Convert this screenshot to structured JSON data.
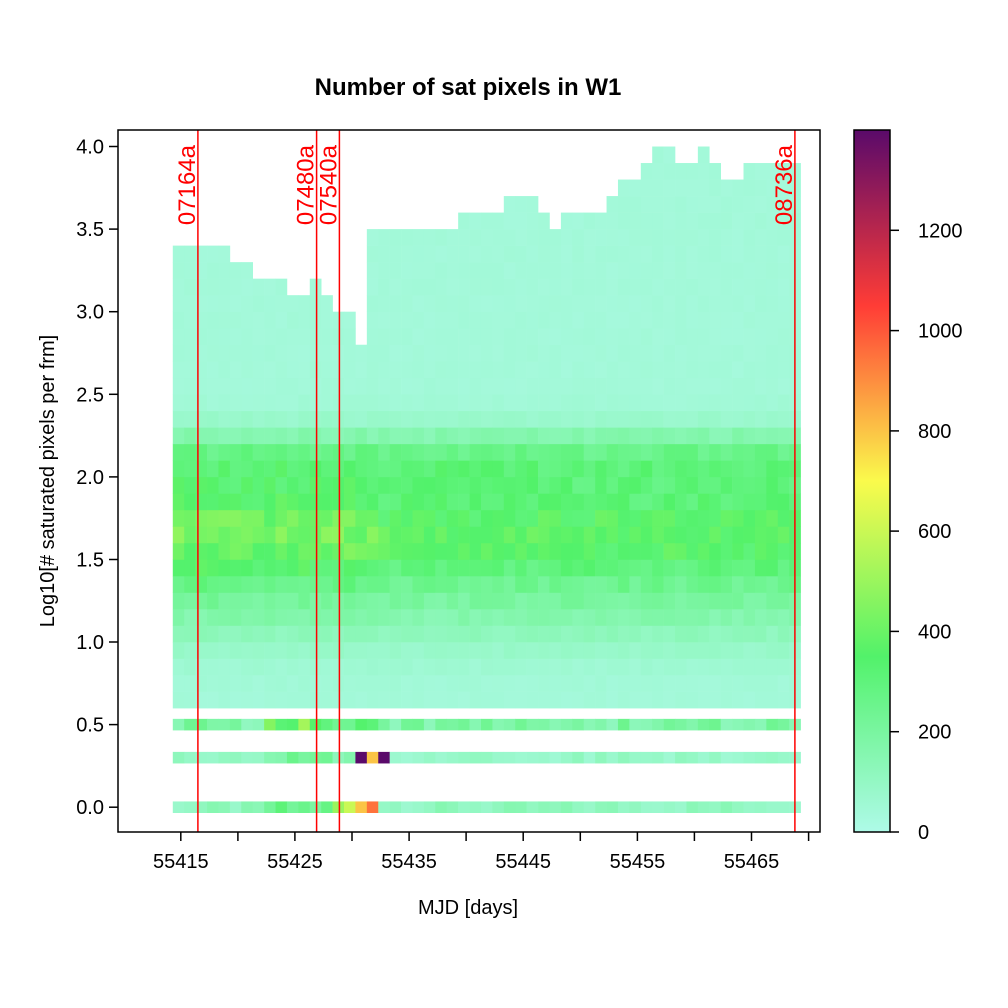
{
  "chart_data": {
    "type": "heatmap",
    "title": "Number of sat pixels in W1",
    "xlabel": "MJD [days]",
    "ylabel": "Log10[# saturated pixels per frm]",
    "xlim": [
      55409.5,
      55471.0
    ],
    "ylim": [
      -0.15,
      4.1
    ],
    "x_ticks": [
      55415,
      55420,
      55425,
      55430,
      55435,
      55440,
      55445,
      55450,
      55455,
      55460,
      55465,
      55470
    ],
    "x_tick_labels": [
      "55415",
      "",
      "55425",
      "",
      "55435",
      "",
      "55445",
      "",
      "55455",
      "",
      "55465",
      ""
    ],
    "y_ticks": [
      0.0,
      0.5,
      1.0,
      1.5,
      2.0,
      2.5,
      3.0,
      3.5,
      4.0
    ],
    "y_tick_labels": [
      "0.0",
      "0.5",
      "1.0",
      "1.5",
      "2.0",
      "2.5",
      "3.0",
      "3.5",
      "4.0"
    ],
    "colorbar": {
      "min": 0,
      "max": 1400,
      "ticks": [
        0,
        200,
        400,
        600,
        800,
        1000,
        1200
      ],
      "tick_labels": [
        "0",
        "200",
        "400",
        "600",
        "800",
        "1000",
        "1200"
      ],
      "colors": [
        "#aefae8",
        "#52f26a",
        "#fafa4c",
        "#ff3c36",
        "#5a0a6a"
      ]
    },
    "bins": {
      "x_start": 55414.3,
      "x_bin_width": 1.0,
      "n_x_bins": 55,
      "y_bin_width": 0.1,
      "tops": [
        3.35,
        3.4,
        3.4,
        3.4,
        3.4,
        3.3,
        3.25,
        3.2,
        3.2,
        3.15,
        3.05,
        3.1,
        3.15,
        3.05,
        3.0,
        3.0,
        2.75,
        3.45,
        3.5,
        3.5,
        3.5,
        3.45,
        3.5,
        3.5,
        3.5,
        3.6,
        3.6,
        3.6,
        3.55,
        3.65,
        3.7,
        3.7,
        3.7,
        3.5,
        3.6,
        3.6,
        3.6,
        3.6,
        3.7,
        3.75,
        3.8,
        3.85,
        3.95,
        3.95,
        3.9,
        3.9,
        3.95,
        3.85,
        3.8,
        3.8,
        3.85,
        3.85,
        3.85,
        3.85,
        3.85
      ],
      "holes": [
        [
          32,
          3.6
        ],
        [
          41,
          3.85
        ],
        [
          42,
          3.85
        ],
        [
          43,
          3.85
        ],
        [
          45,
          3.85
        ]
      ],
      "main_body_min": 0.6,
      "strip_centers": [
        0.5,
        0.3,
        0.0
      ],
      "strip_half_height": 0.035,
      "peaks": [
        [
          16,
          0.3,
          1400
        ],
        [
          18,
          0.3,
          1400
        ],
        [
          17,
          0.3,
          800
        ],
        [
          16,
          0.0,
          800
        ],
        [
          17,
          0.0,
          950
        ],
        [
          15,
          0.0,
          600
        ],
        [
          14,
          0.0,
          500
        ]
      ]
    },
    "annotations": [
      {
        "label": "07164a",
        "x": 55416.5
      },
      {
        "label": "07480a",
        "x": 55426.9
      },
      {
        "label": "07540a",
        "x": 55428.9
      },
      {
        "label": "08736a",
        "x": 55468.8
      }
    ]
  }
}
